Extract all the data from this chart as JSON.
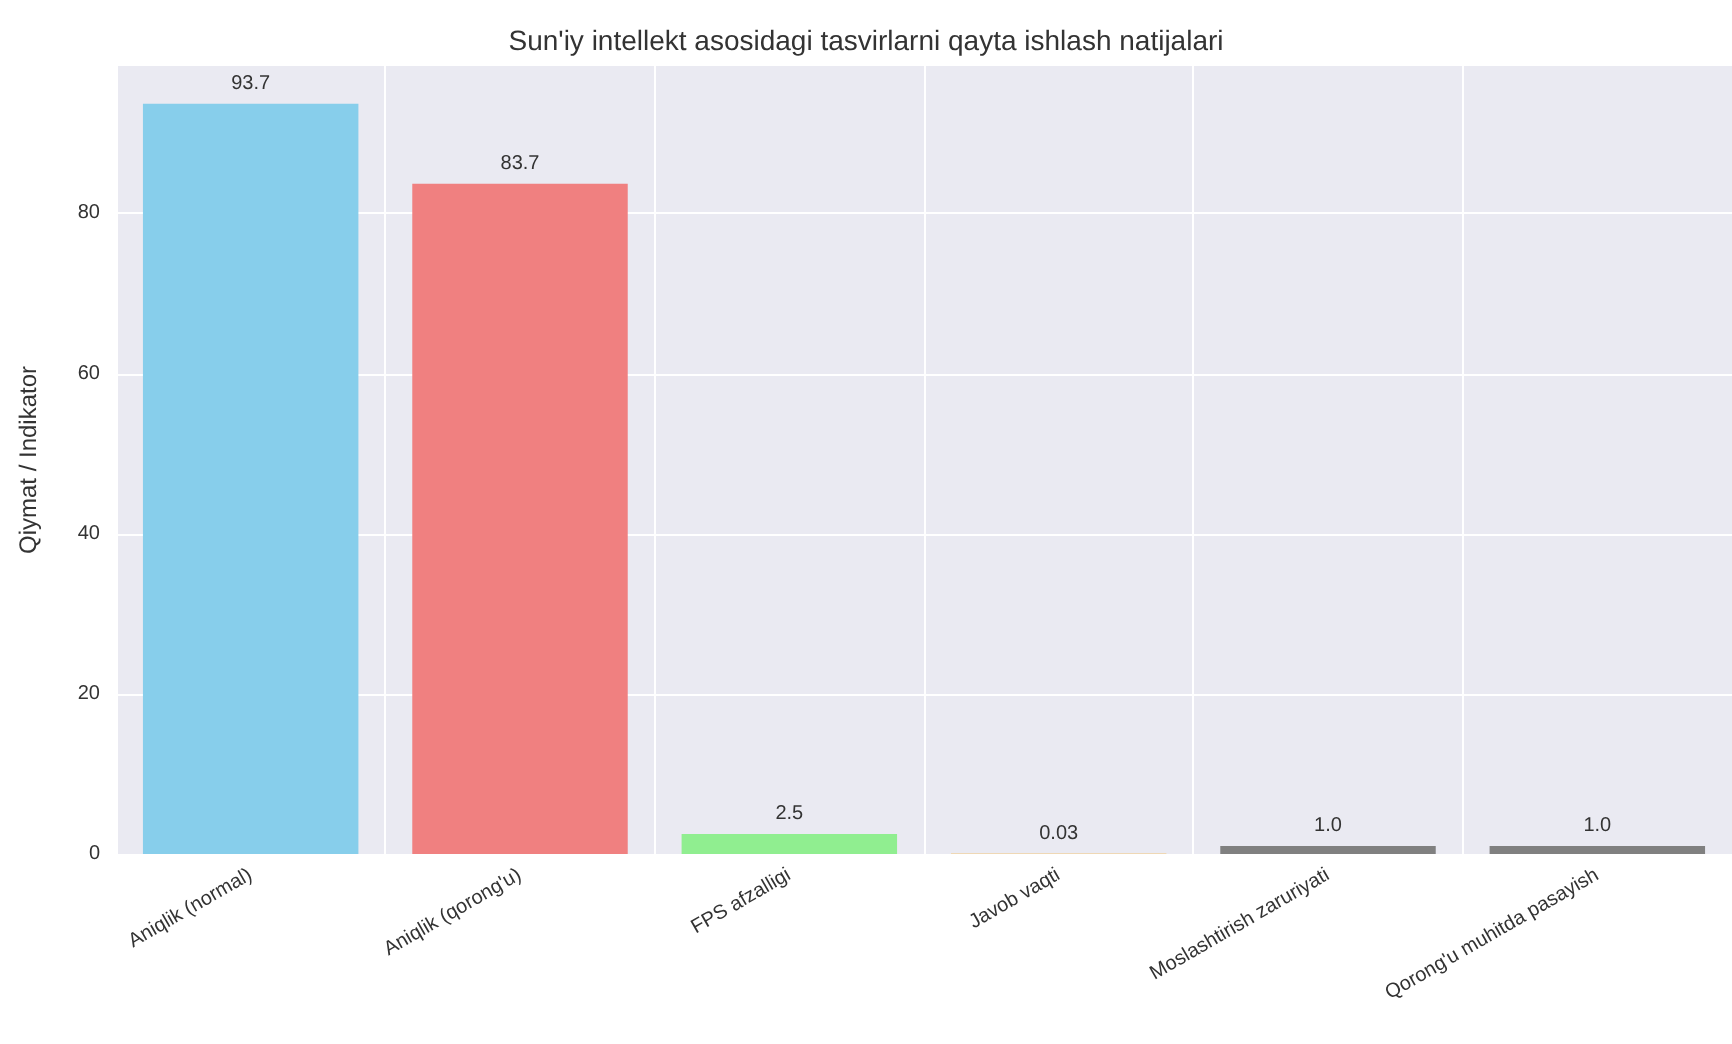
{
  "chart_data": {
    "type": "bar",
    "title": "Sun'iy intellekt asosidagi tasvirlarni qayta ishlash natijalari",
    "ylabel": "Qiymat / Indikator",
    "categories": [
      "Aniqlik (normal)",
      "Aniqlik (qorong'u)",
      "FPS afzalligi",
      "Javob vaqti",
      "Moslashtirish zaruriyati",
      "Qorong'u muhitda pasayish"
    ],
    "values": [
      93.7,
      83.7,
      2.5,
      0.03,
      1.0,
      1.0
    ],
    "colors": [
      "#87ceeb",
      "#f08080",
      "#90ee90",
      "#ffa500",
      "#808080",
      "#808080"
    ],
    "value_labels": [
      "93.7",
      "83.7",
      "2.5",
      "0.03",
      "1.0",
      "1.0"
    ],
    "ylim": [
      0,
      98.4
    ],
    "yticks": [
      0,
      20,
      40,
      60,
      80
    ],
    "grid": true
  }
}
